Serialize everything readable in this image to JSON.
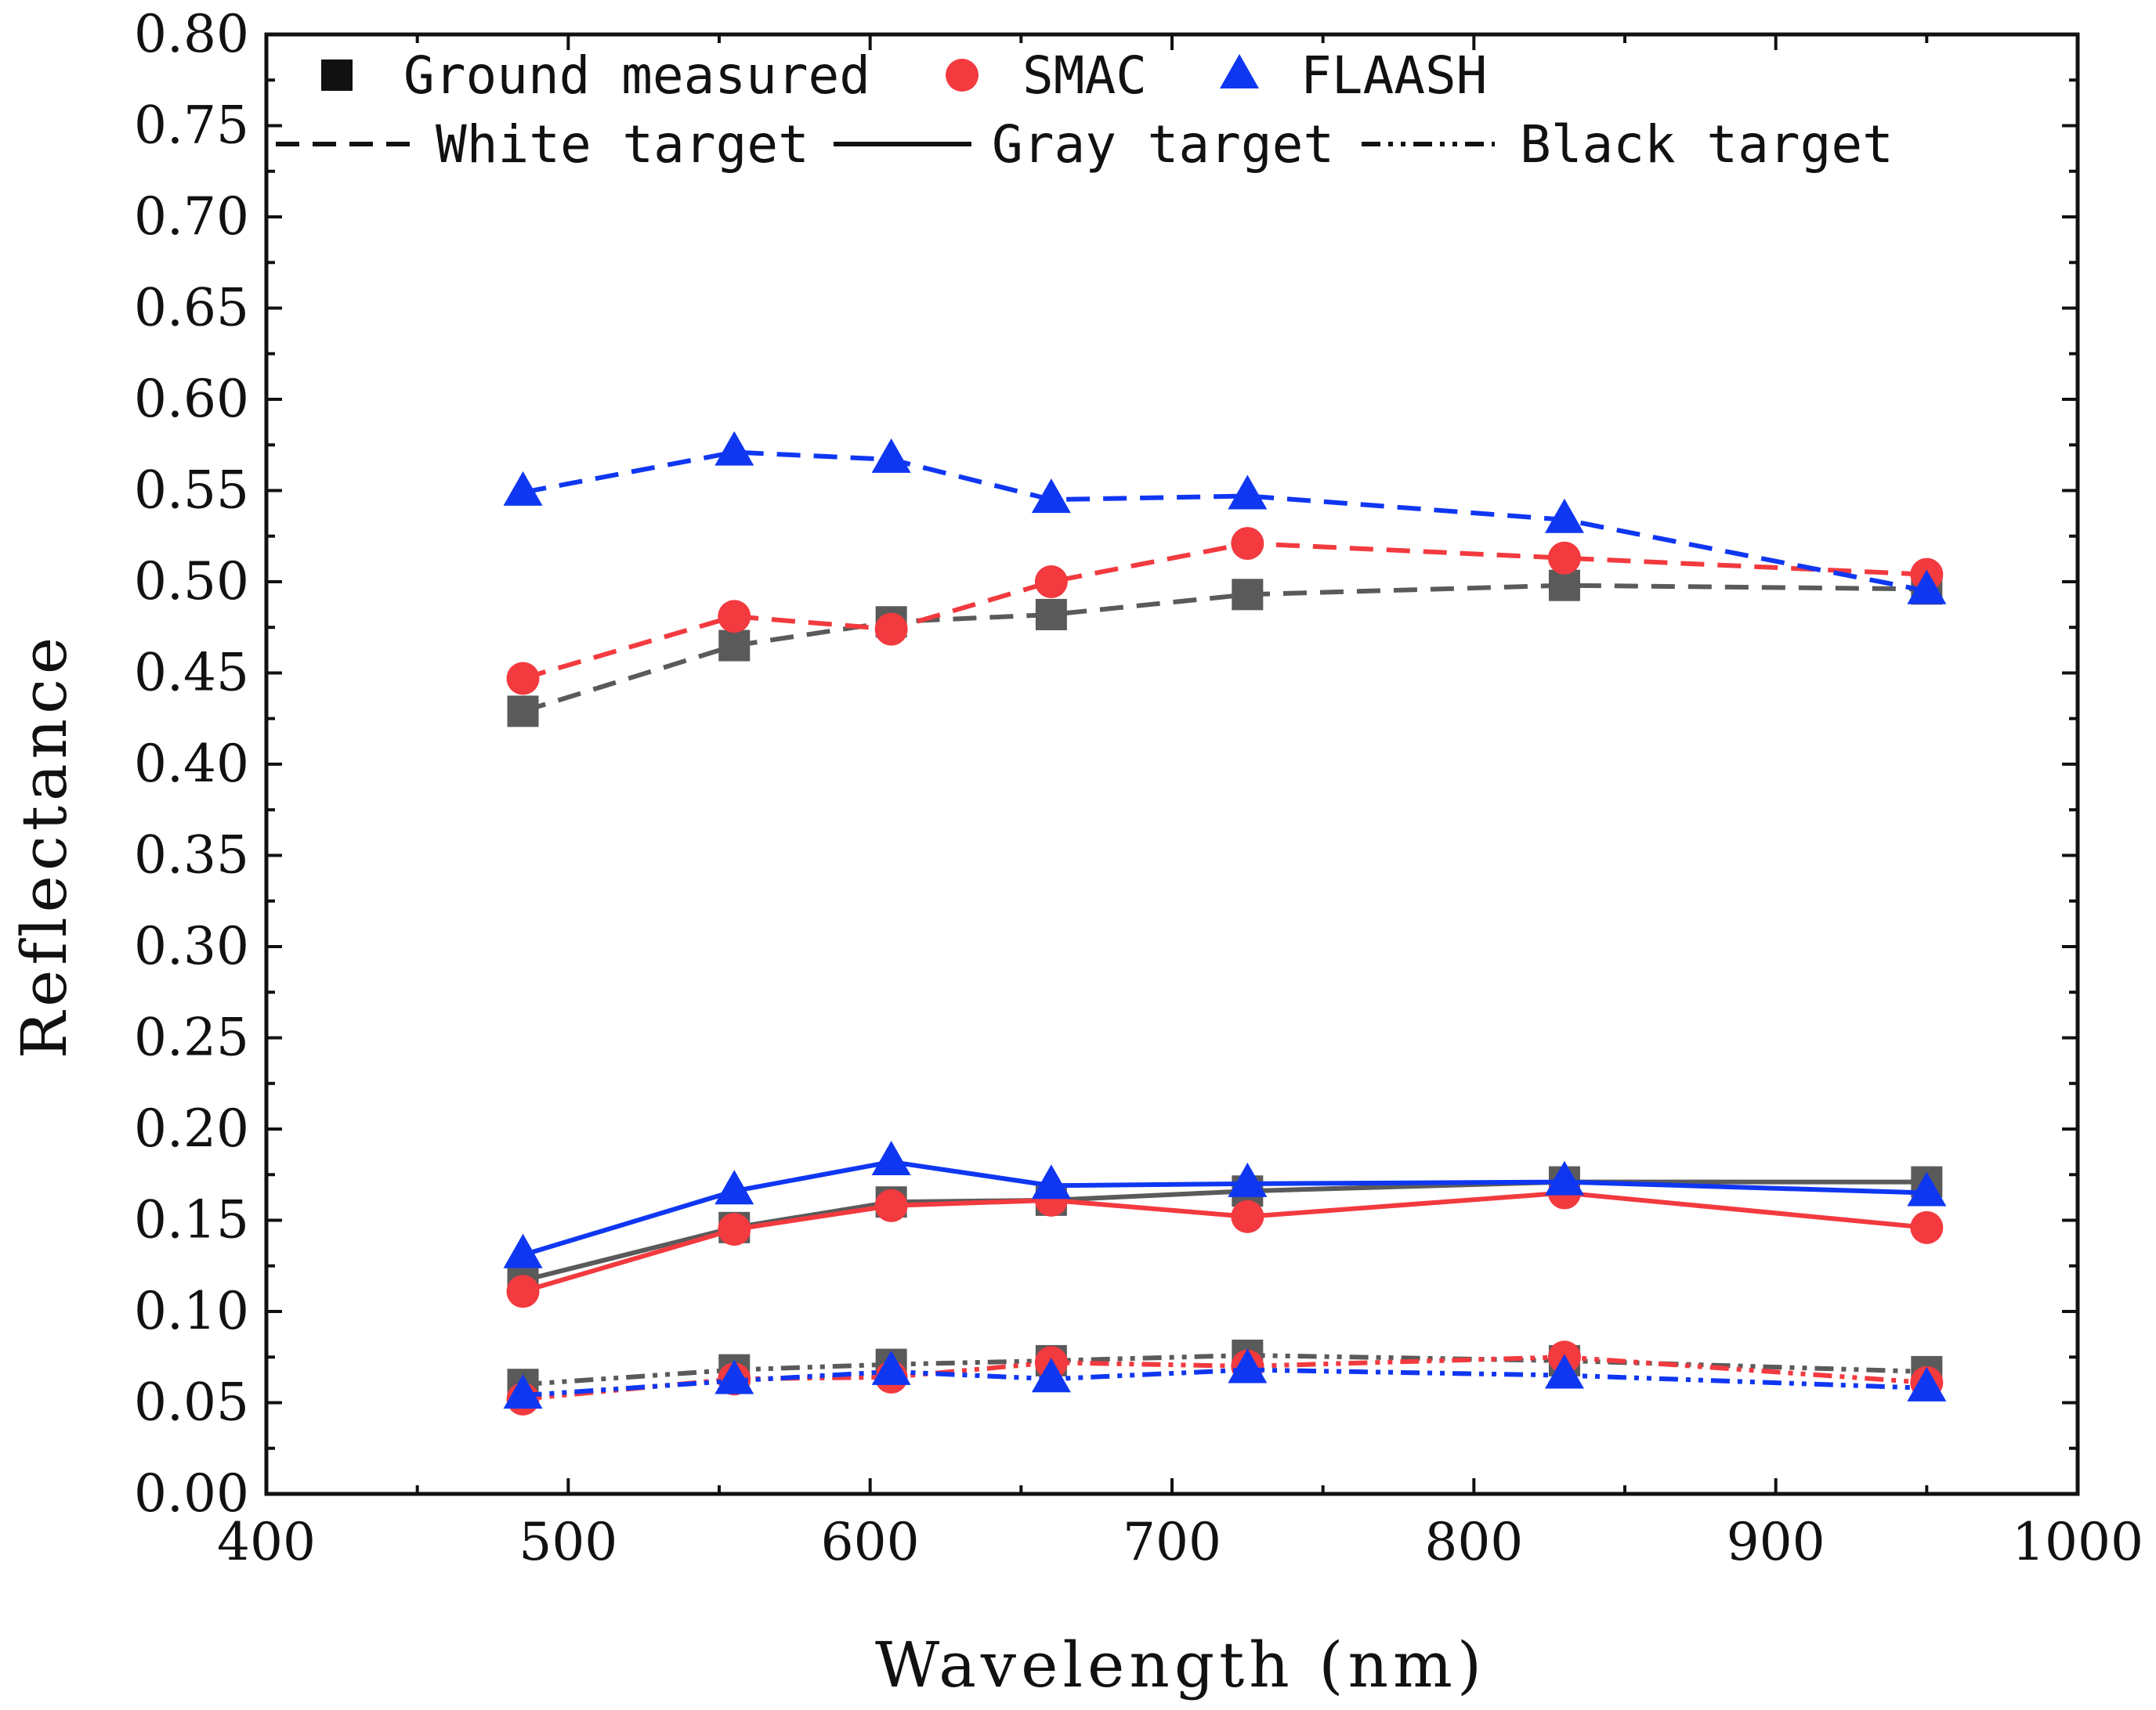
{
  "chart_data": {
    "type": "line",
    "title": "",
    "xlabel": "Wavelength (nm)",
    "ylabel": "Reflectance",
    "xlim": [
      400,
      1000
    ],
    "ylim": [
      0.0,
      0.8
    ],
    "x_ticks": [
      "400",
      "500",
      "600",
      "700",
      "800",
      "900",
      "1000"
    ],
    "y_ticks": [
      "0.00",
      "0.05",
      "0.10",
      "0.15",
      "0.20",
      "0.25",
      "0.30",
      "0.35",
      "0.40",
      "0.45",
      "0.50",
      "0.55",
      "0.60",
      "0.65",
      "0.70",
      "0.75",
      "0.80"
    ],
    "grid": false,
    "legend_position": "top",
    "x": [
      485,
      555,
      607,
      660,
      725,
      830,
      950
    ],
    "methods": [
      {
        "key": "ground",
        "name": "Ground measured",
        "marker": "square",
        "color": "#5a5a5a",
        "legend_color": "#111111"
      },
      {
        "key": "smac",
        "name": "SMAC",
        "marker": "circle",
        "color": "#f23a3f",
        "legend_color": "#f23a3f"
      },
      {
        "key": "flaash",
        "name": "FLAASH",
        "marker": "triangle",
        "color": "#0f37f2",
        "legend_color": "#0f37f2"
      }
    ],
    "targets": [
      {
        "key": "white",
        "name": "White target",
        "dash": "dashed"
      },
      {
        "key": "gray",
        "name": "Gray target",
        "dash": "solid"
      },
      {
        "key": "black",
        "name": "Black target",
        "dash": "dashdotdot"
      }
    ],
    "series": [
      {
        "name": "Ground measured - White target",
        "method": "ground",
        "target": "white",
        "values": [
          0.429,
          0.465,
          0.478,
          0.482,
          0.493,
          0.498,
          0.496
        ]
      },
      {
        "name": "SMAC - White target",
        "method": "smac",
        "target": "white",
        "values": [
          0.447,
          0.481,
          0.474,
          0.5,
          0.521,
          0.513,
          0.504
        ]
      },
      {
        "name": "FLAASH - White target",
        "method": "flaash",
        "target": "white",
        "values": [
          0.549,
          0.571,
          0.567,
          0.545,
          0.547,
          0.534,
          0.495
        ]
      },
      {
        "name": "Ground measured - Gray target",
        "method": "ground",
        "target": "gray",
        "values": [
          0.117,
          0.146,
          0.16,
          0.161,
          0.166,
          0.171,
          0.171
        ]
      },
      {
        "name": "SMAC - Gray target",
        "method": "smac",
        "target": "gray",
        "values": [
          0.111,
          0.145,
          0.158,
          0.161,
          0.152,
          0.165,
          0.146
        ]
      },
      {
        "name": "FLAASH - Gray target",
        "method": "flaash",
        "target": "gray",
        "values": [
          0.131,
          0.166,
          0.182,
          0.169,
          0.17,
          0.171,
          0.165
        ]
      },
      {
        "name": "Ground measured - Black target",
        "method": "ground",
        "target": "black",
        "values": [
          0.06,
          0.068,
          0.071,
          0.073,
          0.076,
          0.073,
          0.067
        ]
      },
      {
        "name": "SMAC - Black target",
        "method": "smac",
        "target": "black",
        "values": [
          0.052,
          0.063,
          0.064,
          0.072,
          0.07,
          0.075,
          0.061
        ]
      },
      {
        "name": "FLAASH - Black target",
        "method": "flaash",
        "target": "black",
        "values": [
          0.054,
          0.062,
          0.067,
          0.063,
          0.068,
          0.065,
          0.058
        ]
      }
    ]
  }
}
